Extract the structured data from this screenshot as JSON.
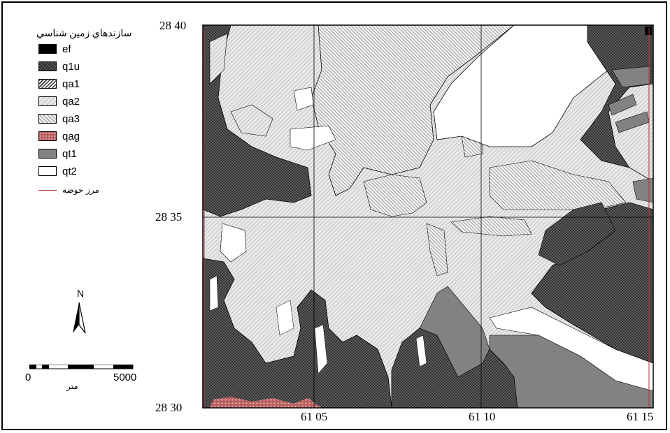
{
  "legend": {
    "title": "سازندهاي زمين شناسي",
    "items": [
      {
        "code": "ef",
        "fill": "solid-black"
      },
      {
        "code": "q1u",
        "fill": "dark-crosshatch"
      },
      {
        "code": "qa1",
        "fill": "dense-diagonal"
      },
      {
        "code": "qa2",
        "fill": "light-diagonal"
      },
      {
        "code": "qa3",
        "fill": "diagonal-hatch"
      },
      {
        "code": "qag",
        "fill": "red-dots"
      },
      {
        "code": "qt1",
        "fill": "medium-gray"
      },
      {
        "code": "qt2",
        "fill": "white"
      }
    ],
    "boundary_label": "مرز حوضه",
    "boundary_color": "#b03040"
  },
  "north_arrow": {
    "label": "N"
  },
  "scale_bar": {
    "zero": "0",
    "max": "5000",
    "unit": "متر"
  },
  "grid": {
    "latitudes": [
      "28 40",
      "28 35",
      "28 30"
    ],
    "longitudes": [
      "61 05",
      "61 10",
      "61 15"
    ]
  },
  "colors": {
    "dark_unit": "#3a3a3a",
    "medium_gray": "#808080",
    "light_gray": "#e4e4e4",
    "frame": "#000000"
  }
}
